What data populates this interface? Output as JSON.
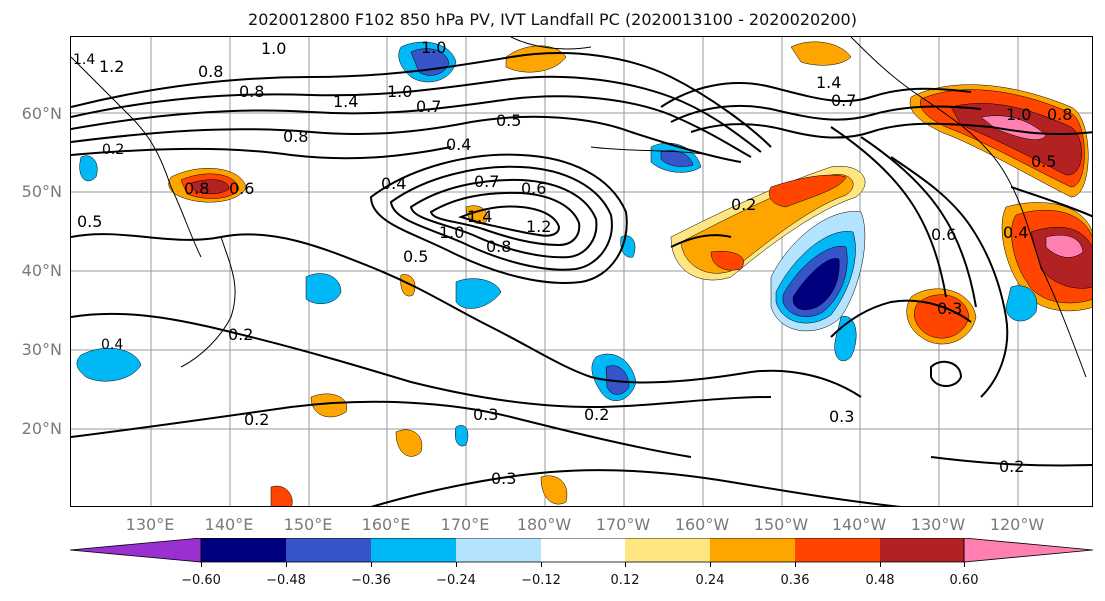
{
  "title": "2020012800 F102 850 hPa PV, IVT Landfall PC (2020013100 - 2020020200)",
  "lat_labels": [
    "60°N",
    "50°N",
    "40°N",
    "30°N",
    "20°N"
  ],
  "lon_labels": [
    "130°E",
    "140°E",
    "150°E",
    "160°E",
    "170°E",
    "180°W",
    "170°W",
    "160°W",
    "150°W",
    "140°W",
    "130°W",
    "120°W"
  ],
  "contour_labels": [
    "1.0",
    "0.8",
    "0.8",
    "1.2",
    "1.4",
    "1.4",
    "1.0",
    "0.8",
    "0.7",
    "1.0",
    "0.5",
    "0.4",
    "0.8",
    "0.6",
    "0.5",
    "0.4",
    "0.7",
    "0.6",
    "1.4",
    "1.2",
    "1.0",
    "0.8",
    "0.5",
    "0.2",
    "0.2",
    "0.3",
    "0.2",
    "0.3",
    "0.2",
    "0.3",
    "1.4",
    "0.7",
    "1.0",
    "0.8",
    "0.5",
    "0.6",
    "0.4",
    "0.3",
    "0.2",
    "0.2",
    "0.4"
  ],
  "colorbar": {
    "ticks": [
      "−0.60",
      "−0.48",
      "−0.36",
      "−0.24",
      "−0.12",
      "0.12",
      "0.24",
      "0.36",
      "0.48",
      "0.60"
    ],
    "colors": [
      "#9b30d0",
      "#00007f",
      "#3555c8",
      "#00b8f5",
      "#b3e3ff",
      "#ffffff",
      "#ffe680",
      "#ffa500",
      "#ff4500",
      "#b22222",
      "#ff7fb0"
    ]
  },
  "shading_colors": {
    "neg_strong": "#00007f",
    "neg_mid": "#3555c8",
    "neg_light": "#00b8f5",
    "neg_faint": "#b3e3ff",
    "pos_faint": "#ffe680",
    "pos_mid": "#ffa500",
    "pos_light": "#ff4500",
    "pos_strong": "#b22222",
    "pos_max": "#ff7fb0"
  }
}
